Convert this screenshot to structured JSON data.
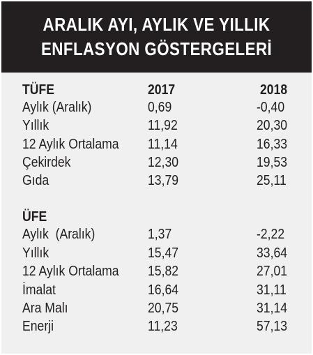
{
  "title": {
    "line1": "ARALIK AYI, AYLIK VE YILLIK",
    "line2": "ENFLASYON GÖSTERGELERİ"
  },
  "tufe": {
    "label": "TÜFE",
    "col1": "2017",
    "col2": "2018",
    "rows": [
      {
        "label": "Aylık (Aralık)",
        "v2017": "0,69",
        "v2018": "-0,40"
      },
      {
        "label": "Yıllık",
        "v2017": "11,92",
        "v2018": "20,30"
      },
      {
        "label": "12 Aylık Ortalama",
        "v2017": "11,14",
        "v2018": "16,33"
      },
      {
        "label": "Çekirdek",
        "v2017": "12,30",
        "v2018": "19,53"
      },
      {
        "label": "Gıda",
        "v2017": "13,79",
        "v2018": "25,11"
      }
    ]
  },
  "ufe": {
    "label": "ÜFE",
    "rows": [
      {
        "label": "Aylık  (Aralık)",
        "v2017": "1,37",
        "v2018": "-2,22"
      },
      {
        "label": "Yıllık",
        "v2017": "15,47",
        "v2018": "33,64"
      },
      {
        "label": "12 Aylık Ortalama",
        "v2017": "15,82",
        "v2018": "27,01"
      },
      {
        "label": "İmalat",
        "v2017": "16,64",
        "v2018": "31,11"
      },
      {
        "label": "Ara Malı",
        "v2017": "20,75",
        "v2018": "31,14"
      },
      {
        "label": "Enerji",
        "v2017": "11,23",
        "v2018": "57,13"
      }
    ]
  },
  "colors": {
    "header_bg": "#231f20",
    "body_bg": "#f0f0f0",
    "text": "#231f20"
  }
}
